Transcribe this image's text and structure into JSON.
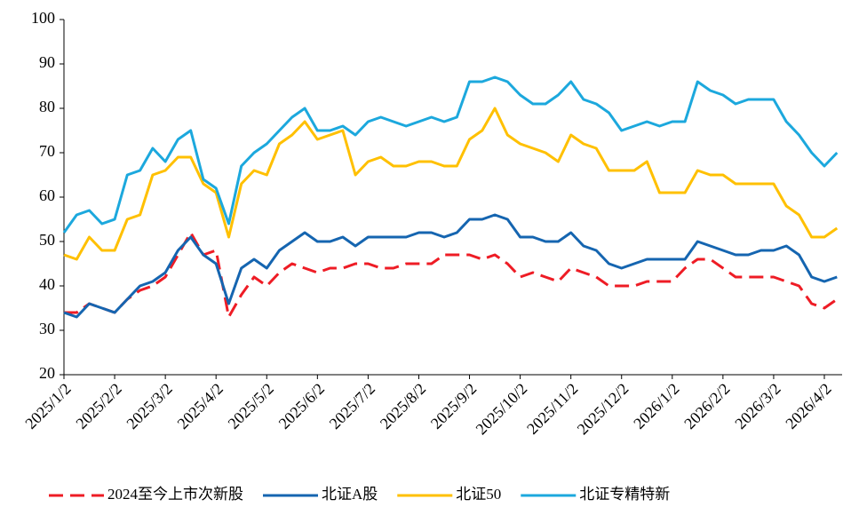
{
  "chart_data": {
    "type": "line",
    "categories": [
      "2025/1/2",
      null,
      null,
      null,
      "2025/2/2",
      null,
      null,
      null,
      "2025/3/2",
      null,
      null,
      null,
      "2025/4/2",
      null,
      null,
      null,
      "2025/5/2",
      null,
      null,
      null,
      "2025/6/2",
      null,
      null,
      null,
      "2025/7/2",
      null,
      null,
      null,
      "2025/8/2",
      null,
      null,
      null,
      "2025/9/2",
      null,
      null,
      null,
      "2025/10/2",
      null,
      null,
      null,
      "2025/11/2",
      null,
      null,
      null,
      "2025/12/2",
      null,
      null,
      null,
      "2026/1/2",
      null,
      null,
      null,
      "2026/2/2",
      null,
      null,
      null,
      "2026/3/2",
      null,
      null,
      null,
      "2026/4/2",
      null
    ],
    "series": [
      {
        "name": "2024至今上市次新股",
        "color": "#ee1c25",
        "dashed": true,
        "values": [
          34,
          34,
          36,
          35,
          34,
          37,
          39,
          40,
          42,
          47,
          52,
          47,
          48,
          33,
          38,
          42,
          40,
          43,
          45,
          44,
          43,
          44,
          44,
          45,
          45,
          44,
          44,
          45,
          45,
          45,
          47,
          47,
          47,
          46,
          47,
          45,
          42,
          43,
          42,
          41,
          44,
          43,
          42,
          40,
          40,
          40,
          41,
          41,
          41,
          44,
          46,
          46,
          44,
          42,
          42,
          42,
          42,
          41,
          40,
          36,
          35,
          37
        ]
      },
      {
        "name": "北证A股",
        "color": "#1565b0",
        "values": [
          34,
          33,
          36,
          35,
          34,
          37,
          40,
          41,
          43,
          48,
          51,
          47,
          45,
          36,
          44,
          46,
          44,
          48,
          50,
          52,
          50,
          50,
          51,
          49,
          51,
          51,
          51,
          51,
          52,
          52,
          51,
          52,
          55,
          55,
          56,
          55,
          51,
          51,
          50,
          50,
          52,
          49,
          48,
          45,
          44,
          45,
          46,
          46,
          46,
          46,
          50,
          49,
          48,
          47,
          47,
          48,
          48,
          49,
          47,
          42,
          41,
          42
        ]
      },
      {
        "name": "北证50",
        "color": "#ffc000",
        "values": [
          47,
          46,
          51,
          48,
          48,
          55,
          56,
          65,
          66,
          69,
          69,
          63,
          61,
          51,
          63,
          66,
          65,
          72,
          74,
          77,
          73,
          74,
          75,
          65,
          68,
          69,
          67,
          67,
          68,
          68,
          67,
          67,
          73,
          75,
          80,
          74,
          72,
          71,
          70,
          68,
          74,
          72,
          71,
          66,
          66,
          66,
          68,
          61,
          61,
          61,
          66,
          65,
          65,
          63,
          63,
          63,
          63,
          58,
          56,
          51,
          51,
          53
        ]
      },
      {
        "name": "北证专精特新",
        "color": "#1ca8dd",
        "values": [
          52,
          56,
          57,
          54,
          55,
          65,
          66,
          71,
          68,
          73,
          75,
          64,
          62,
          54,
          67,
          70,
          72,
          75,
          78,
          80,
          75,
          75,
          76,
          74,
          77,
          78,
          77,
          76,
          77,
          78,
          77,
          78,
          86,
          86,
          87,
          86,
          83,
          81,
          81,
          83,
          86,
          82,
          81,
          79,
          75,
          76,
          77,
          76,
          77,
          77,
          86,
          84,
          83,
          81,
          82,
          82,
          82,
          77,
          74,
          70,
          67,
          70
        ]
      }
    ],
    "ylim": [
      20,
      100
    ],
    "yticks": [
      20,
      30,
      40,
      50,
      60,
      70,
      80,
      90,
      100
    ]
  }
}
